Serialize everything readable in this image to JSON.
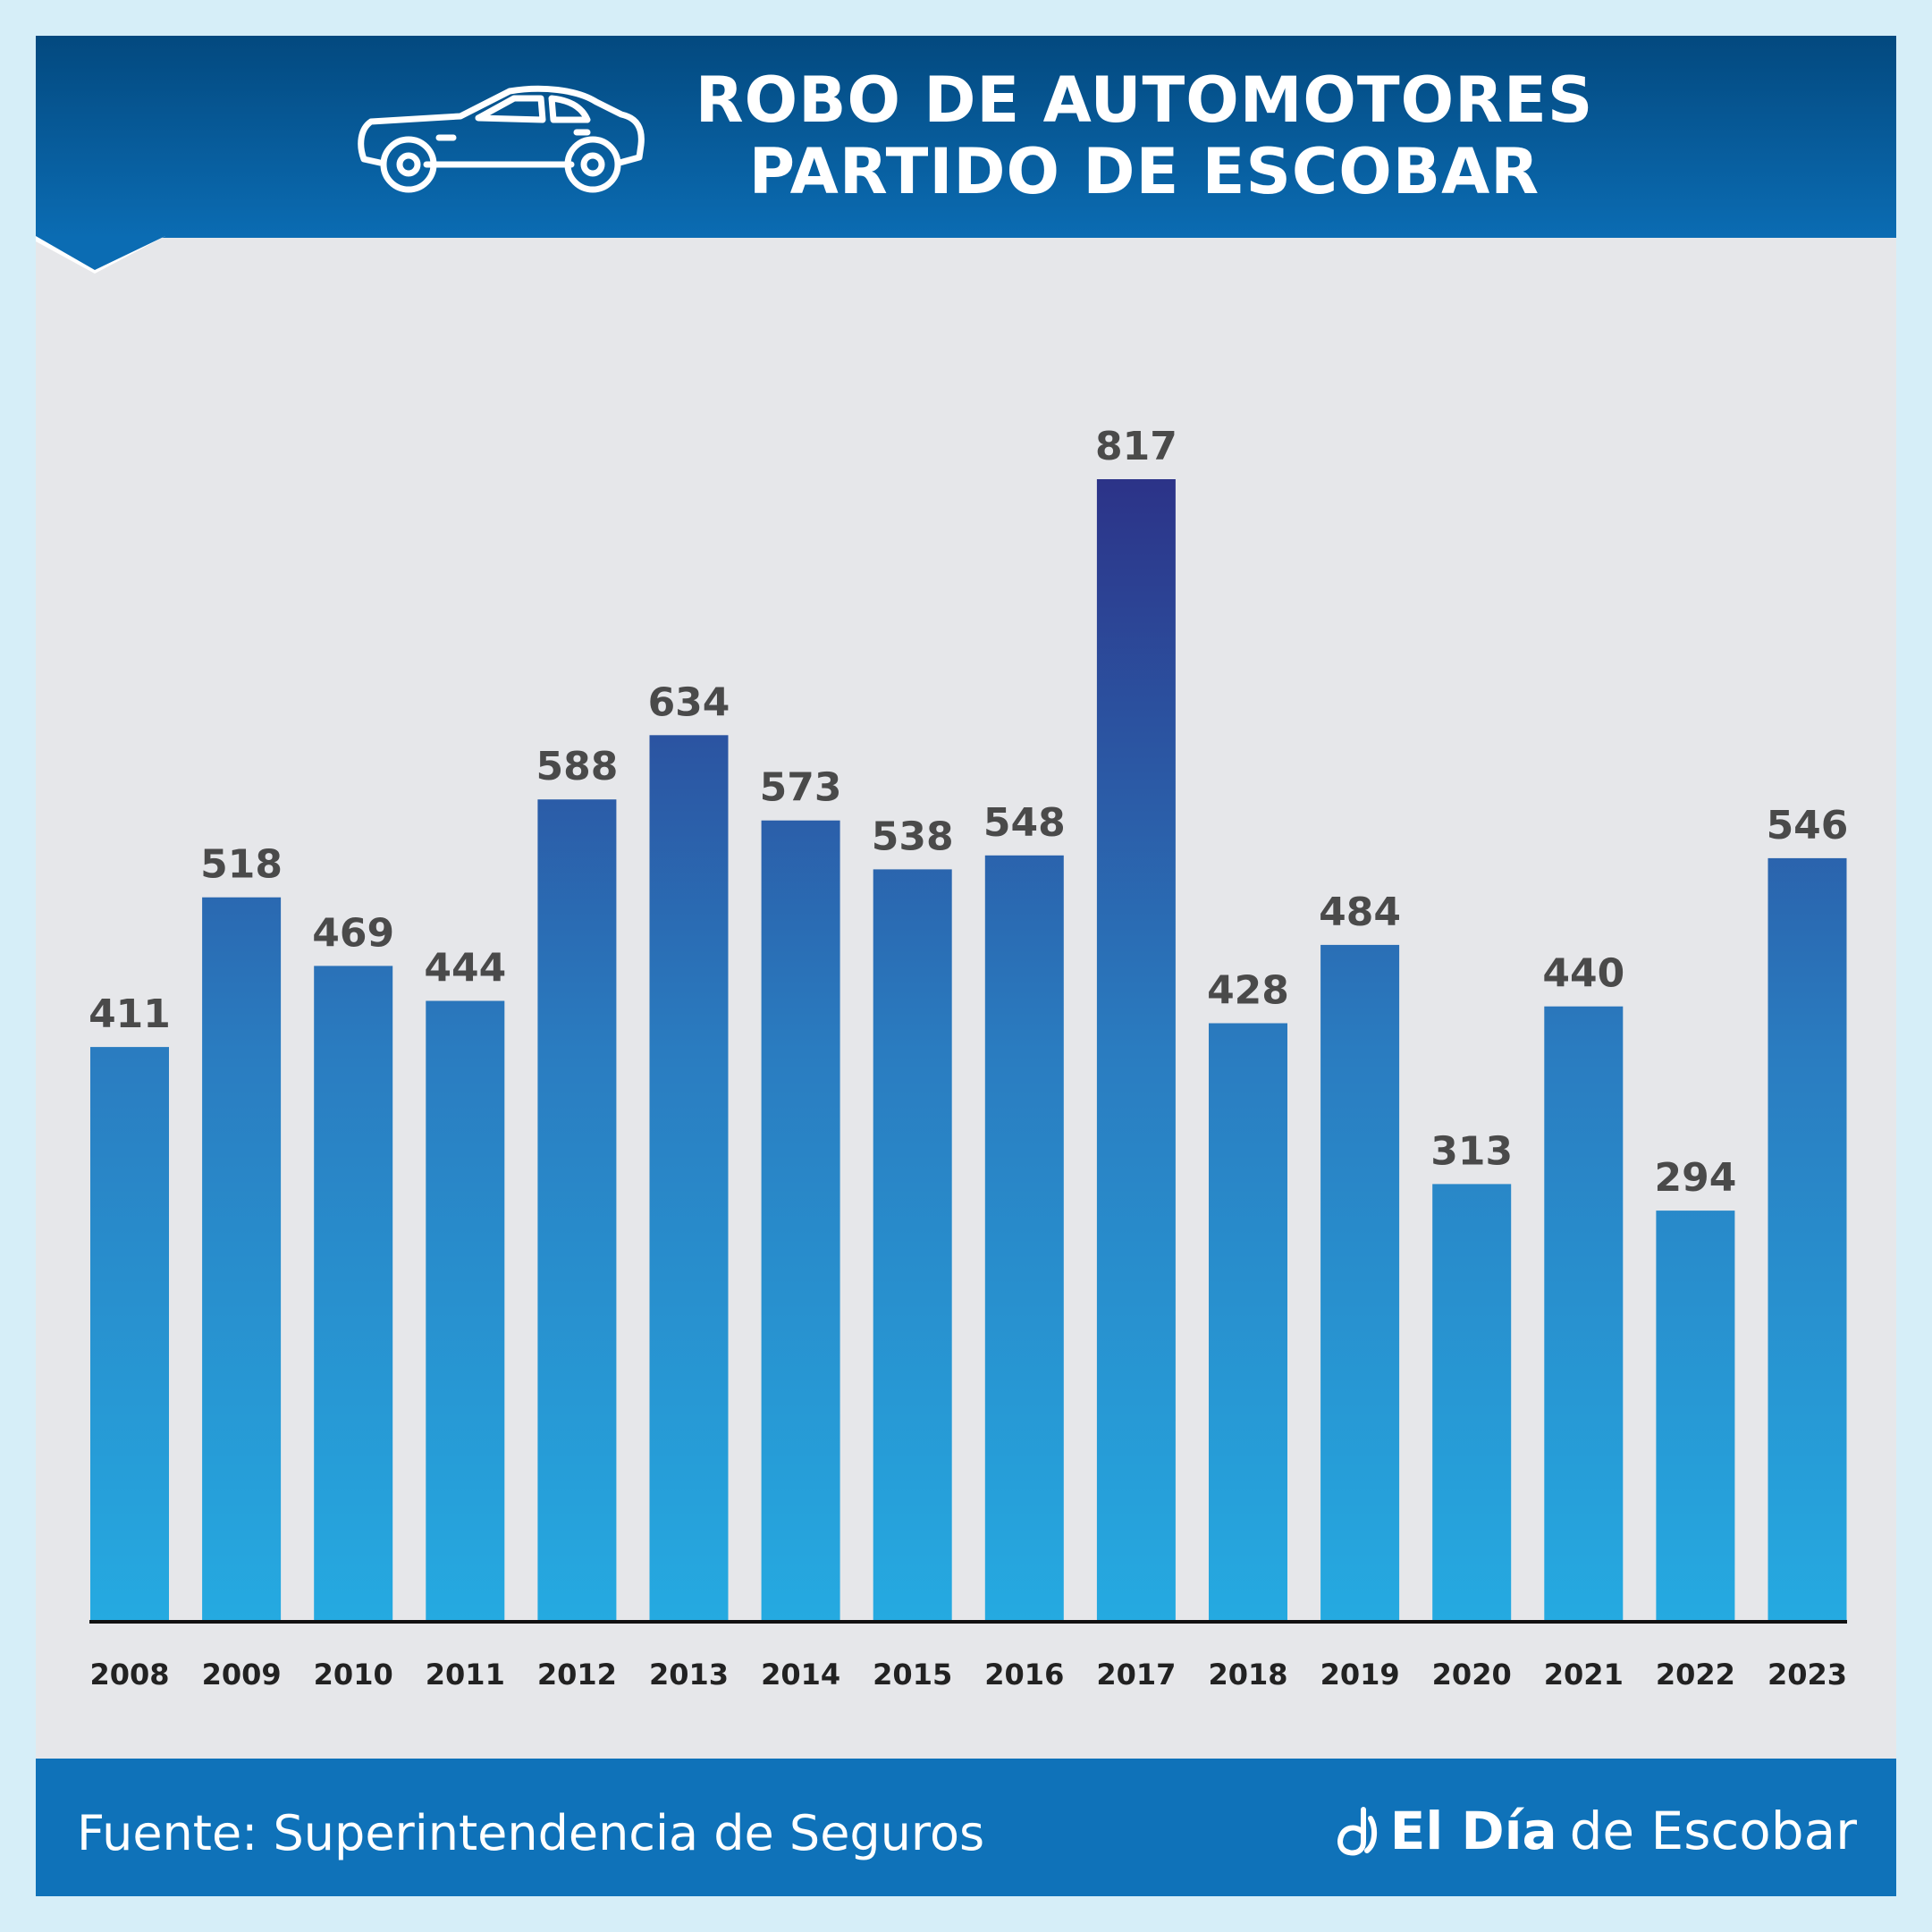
{
  "header": {
    "title_line_1": "ROBO DE AUTOMOTORES",
    "title_line_2": "PARTIDO DE ESCOBAR",
    "icon": "car-icon"
  },
  "footer": {
    "source": "Fuente: Superintendencia de Seguros",
    "brand_bold": "El Día",
    "brand_rest": "de Escobar",
    "brand_icon": "brand-logo-icon"
  },
  "colors": {
    "background": "#d6eef8",
    "panel": "#e6e7ea",
    "header_top": "#03497f",
    "header_bottom": "#0b6cb3",
    "bar_top": "#2c3388",
    "bar_bottom": "#25aae1",
    "footer": "#0f72b9"
  },
  "chart_data": {
    "type": "bar",
    "title": "ROBO DE AUTOMOTORES PARTIDO DE ESCOBAR",
    "categories": [
      "2008",
      "2009",
      "2010",
      "2011",
      "2012",
      "2013",
      "2014",
      "2015",
      "2016",
      "2017",
      "2018",
      "2019",
      "2020",
      "2021",
      "2022",
      "2023"
    ],
    "values": [
      411,
      518,
      469,
      444,
      588,
      634,
      573,
      538,
      548,
      817,
      428,
      484,
      313,
      440,
      294,
      546
    ],
    "xlabel": "",
    "ylabel": "",
    "ylim": [
      0,
      817
    ],
    "grid": false,
    "legend": "none"
  }
}
